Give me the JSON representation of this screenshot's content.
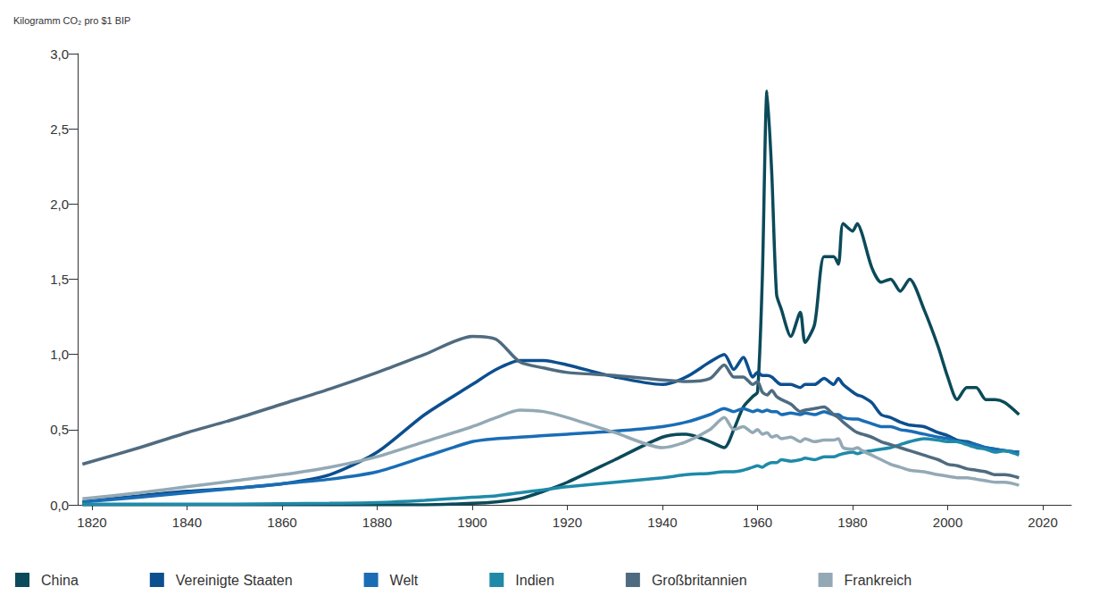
{
  "chart_data": {
    "type": "line",
    "ylabel": "Kilogramm CO₂ pro $1 BIP",
    "x": [
      1818,
      1830,
      1840,
      1850,
      1860,
      1870,
      1880,
      1890,
      1900,
      1905,
      1910,
      1915,
      1920,
      1930,
      1940,
      1945,
      1950,
      1953,
      1955,
      1957,
      1959,
      1960,
      1961,
      1962,
      1963,
      1964,
      1965,
      1967,
      1969,
      1970,
      1972,
      1974,
      1976,
      1977,
      1978,
      1980,
      1981,
      1982,
      1984,
      1986,
      1988,
      1990,
      1992,
      1995,
      1998,
      2000,
      2002,
      2004,
      2006,
      2008,
      2010,
      2012,
      2015
    ],
    "series": [
      {
        "name": "China",
        "color": "#0b4a5a",
        "values": [
          0,
          0,
          0,
          0,
          0,
          0,
          0,
          0,
          0.01,
          0.02,
          0.04,
          0.09,
          0.15,
          0.3,
          0.45,
          0.47,
          0.42,
          0.38,
          0.5,
          0.65,
          0.72,
          0.75,
          1.5,
          2.75,
          2.2,
          1.4,
          1.3,
          1.12,
          1.28,
          1.08,
          1.2,
          1.65,
          1.65,
          1.6,
          1.87,
          1.82,
          1.87,
          1.8,
          1.58,
          1.48,
          1.5,
          1.42,
          1.5,
          1.3,
          1.05,
          0.85,
          0.7,
          0.78,
          0.78,
          0.7,
          0.7,
          0.68,
          0.6
        ]
      },
      {
        "name": "Vereinigte Staaten",
        "color": "#0c4f8f",
        "values": [
          0.02,
          0.06,
          0.09,
          0.11,
          0.14,
          0.2,
          0.35,
          0.6,
          0.8,
          0.9,
          0.96,
          0.96,
          0.93,
          0.85,
          0.8,
          0.85,
          0.95,
          1.0,
          0.9,
          0.98,
          0.85,
          0.88,
          0.86,
          0.86,
          0.85,
          0.82,
          0.8,
          0.8,
          0.78,
          0.8,
          0.8,
          0.84,
          0.8,
          0.84,
          0.8,
          0.75,
          0.73,
          0.72,
          0.68,
          0.6,
          0.58,
          0.55,
          0.53,
          0.52,
          0.48,
          0.46,
          0.43,
          0.42,
          0.4,
          0.38,
          0.37,
          0.36,
          0.35
        ]
      },
      {
        "name": "Welt",
        "color": "#1a6db5",
        "values": [
          0.02,
          0.05,
          0.08,
          0.11,
          0.14,
          0.17,
          0.22,
          0.32,
          0.42,
          0.44,
          0.45,
          0.46,
          0.47,
          0.49,
          0.52,
          0.55,
          0.6,
          0.64,
          0.62,
          0.64,
          0.62,
          0.63,
          0.62,
          0.63,
          0.62,
          0.62,
          0.6,
          0.61,
          0.6,
          0.61,
          0.6,
          0.62,
          0.6,
          0.6,
          0.58,
          0.57,
          0.57,
          0.56,
          0.54,
          0.52,
          0.52,
          0.5,
          0.49,
          0.47,
          0.45,
          0.44,
          0.42,
          0.41,
          0.4,
          0.38,
          0.37,
          0.36,
          0.35
        ]
      },
      {
        "name": "Indien",
        "color": "#1f8aa8",
        "values": [
          0.005,
          0.005,
          0.005,
          0.005,
          0.008,
          0.01,
          0.015,
          0.03,
          0.05,
          0.06,
          0.08,
          0.1,
          0.12,
          0.15,
          0.18,
          0.2,
          0.21,
          0.22,
          0.22,
          0.23,
          0.25,
          0.26,
          0.25,
          0.27,
          0.28,
          0.28,
          0.3,
          0.29,
          0.3,
          0.31,
          0.3,
          0.32,
          0.32,
          0.33,
          0.34,
          0.35,
          0.34,
          0.35,
          0.36,
          0.37,
          0.38,
          0.4,
          0.42,
          0.44,
          0.43,
          0.42,
          0.42,
          0.4,
          0.38,
          0.37,
          0.35,
          0.36,
          0.33
        ]
      },
      {
        "name": "Großbritannien",
        "color": "#4f6b80",
        "values": [
          0.27,
          0.38,
          0.48,
          0.57,
          0.67,
          0.77,
          0.88,
          1.0,
          1.12,
          1.1,
          0.95,
          0.91,
          0.88,
          0.86,
          0.83,
          0.82,
          0.84,
          0.93,
          0.85,
          0.85,
          0.8,
          0.82,
          0.75,
          0.73,
          0.76,
          0.72,
          0.7,
          0.67,
          0.62,
          0.63,
          0.64,
          0.65,
          0.6,
          0.58,
          0.55,
          0.5,
          0.48,
          0.47,
          0.45,
          0.42,
          0.4,
          0.38,
          0.36,
          0.33,
          0.3,
          0.27,
          0.26,
          0.24,
          0.23,
          0.22,
          0.2,
          0.2,
          0.18
        ]
      },
      {
        "name": "Frankreich",
        "color": "#93a9b5",
        "values": [
          0.04,
          0.08,
          0.12,
          0.16,
          0.2,
          0.25,
          0.32,
          0.42,
          0.52,
          0.58,
          0.63,
          0.62,
          0.58,
          0.48,
          0.38,
          0.42,
          0.5,
          0.58,
          0.5,
          0.52,
          0.48,
          0.5,
          0.47,
          0.48,
          0.45,
          0.46,
          0.44,
          0.45,
          0.42,
          0.44,
          0.42,
          0.43,
          0.43,
          0.44,
          0.38,
          0.37,
          0.38,
          0.36,
          0.33,
          0.3,
          0.27,
          0.25,
          0.23,
          0.22,
          0.2,
          0.19,
          0.18,
          0.18,
          0.17,
          0.16,
          0.15,
          0.15,
          0.13
        ]
      }
    ],
    "xlim": [
      1817,
      2026
    ],
    "xticks": [
      1820,
      1840,
      1860,
      1880,
      1900,
      1920,
      1940,
      1960,
      1980,
      2000,
      2020
    ],
    "ylim": [
      0,
      3.0
    ],
    "yticks": [
      {
        "value": 0,
        "label": "0,0"
      },
      {
        "value": 0.5,
        "label": "0,5"
      },
      {
        "value": 1.0,
        "label": "1,0"
      },
      {
        "value": 1.5,
        "label": "1,5"
      },
      {
        "value": 2.0,
        "label": "2,0"
      },
      {
        "value": 2.5,
        "label": "2,5"
      },
      {
        "value": 3.0,
        "label": "3,0"
      }
    ],
    "grid": false,
    "legend": "bottom"
  }
}
